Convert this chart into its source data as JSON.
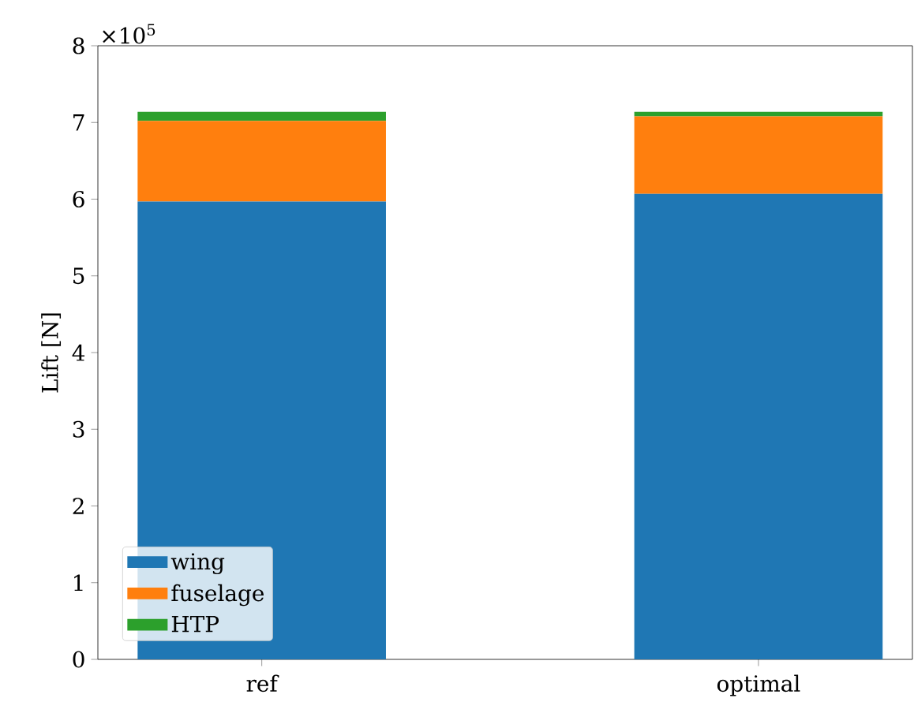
{
  "chart_data": {
    "type": "bar",
    "stacked": true,
    "ylabel": "Lift [N]",
    "categories": [
      "ref",
      "optimal"
    ],
    "series": [
      {
        "name": "wing",
        "color": "#1f77b4",
        "values": [
          5.97,
          6.07
        ]
      },
      {
        "name": "fuselage",
        "color": "#ff7f0e",
        "values": [
          1.05,
          1.01
        ]
      },
      {
        "name": "HTP",
        "color": "#2ca02c",
        "values": [
          0.12,
          0.06
        ]
      }
    ],
    "ylim": [
      0,
      8
    ],
    "yticks": [
      0,
      1,
      2,
      3,
      4,
      5,
      6,
      7,
      8
    ],
    "annotations": [
      "×10$^{5}$"
    ],
    "legend": "bottom left",
    "grid": false
  }
}
